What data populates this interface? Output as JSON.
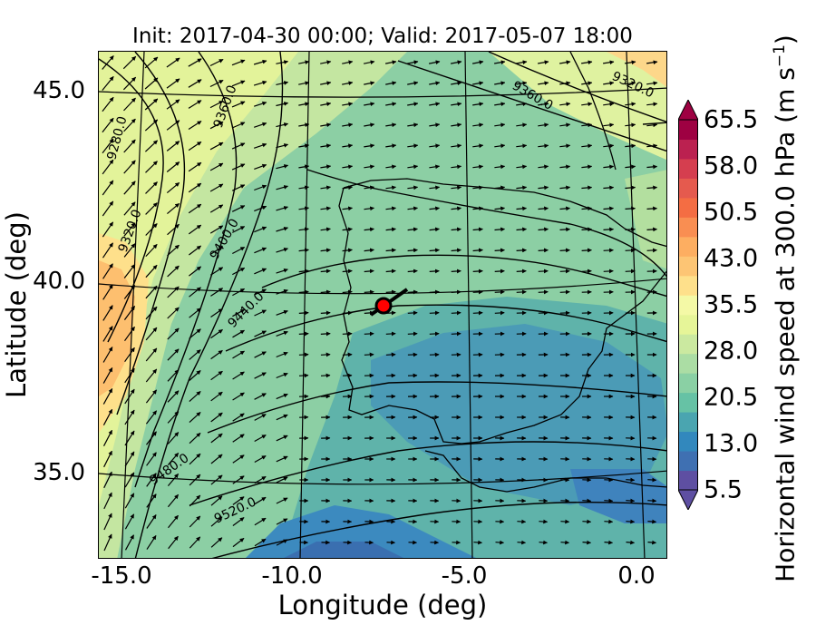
{
  "title": "Init: 2017-04-30 00:00; Valid: 2017-05-07 18:00",
  "x_axis": {
    "label": "Longitude (deg)",
    "ticks": [
      "-15.0",
      "-10.0",
      "-5.0",
      "0.0"
    ]
  },
  "y_axis": {
    "label": "Latitude (deg)",
    "ticks": [
      "45.0",
      "40.0",
      "35.0"
    ]
  },
  "colorbar": {
    "label_main": "Horizontal wind speed at 300.0 hPa (m s",
    "label_sup": "−1",
    "label_end": ")",
    "ticks": [
      "65.5",
      "58.0",
      "50.5",
      "43.0",
      "35.5",
      "28.0",
      "20.5",
      "13.0",
      "5.5"
    ],
    "colors": [
      "#5e4fa2",
      "#3f70b2",
      "#3288bd",
      "#4aa5b0",
      "#66c2a5",
      "#8ad0a4",
      "#abdda4",
      "#cbe9a0",
      "#e6f598",
      "#f4f9a6",
      "#fee08b",
      "#fdc574",
      "#fdae61",
      "#f98e52",
      "#f46d43",
      "#e55a4e",
      "#d53e4f",
      "#bb2150",
      "#9e0142"
    ]
  },
  "contour_labels": [
    "9280.0",
    "9320.0",
    "9360.0",
    "9400.0",
    "9440.0",
    "9480.0",
    "9520.0",
    "9360.0",
    "9320.0"
  ],
  "marker": {
    "name": "location-marker",
    "lon": -7.7,
    "lat": 39.4
  }
}
